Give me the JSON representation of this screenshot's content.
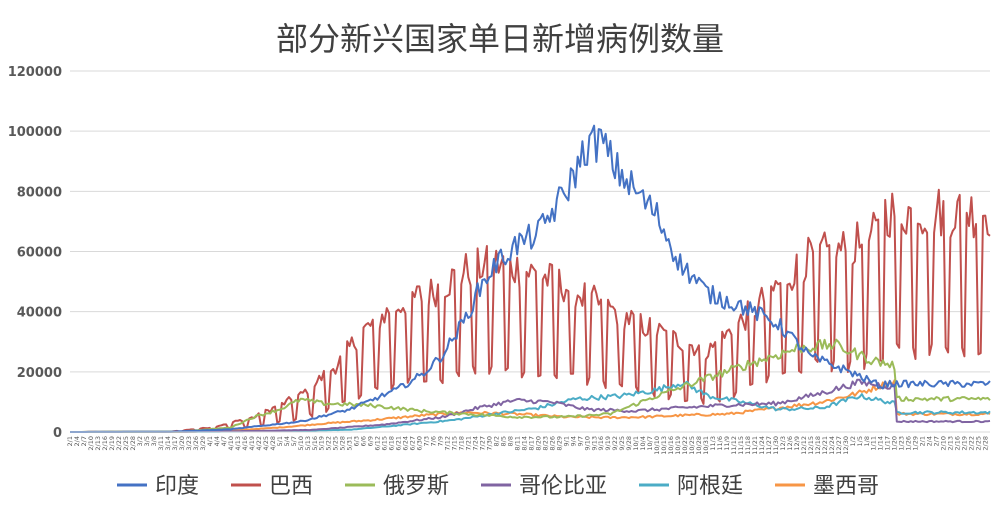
{
  "chart_data": {
    "type": "line",
    "title": "部分新兴国家单日新增病例数量",
    "xlabel": "",
    "ylabel": "",
    "ylim": [
      0,
      120000
    ],
    "yticks": [
      0,
      20000,
      40000,
      60000,
      80000,
      100000,
      120000
    ],
    "grid": true,
    "legend_position": "bottom",
    "x_start": "2020-02-01",
    "x_end": "2021-03-02",
    "x_tick_step_days": 3,
    "series": [
      {
        "name": "印度",
        "color": "#4472C4",
        "anchors": [
          [
            "2/1",
            0
          ],
          [
            "3/15",
            100
          ],
          [
            "4/10",
            900
          ],
          [
            "5/10",
            3500
          ],
          [
            "5/31",
            7500
          ],
          [
            "6/20",
            14000
          ],
          [
            "7/1",
            19000
          ],
          [
            "7/8",
            24000
          ],
          [
            "7/12",
            28000
          ],
          [
            "7/20",
            38000
          ],
          [
            "7/26",
            48000
          ],
          [
            "8/1",
            55000
          ],
          [
            "8/10",
            62000
          ],
          [
            "8/20",
            66000
          ],
          [
            "9/1",
            80000
          ],
          [
            "9/10",
            95000
          ],
          [
            "9/16",
            97000
          ],
          [
            "9/22",
            88000
          ],
          [
            "10/1",
            80000
          ],
          [
            "10/10",
            72000
          ],
          [
            "10/20",
            56000
          ],
          [
            "11/1",
            46000
          ],
          [
            "11/15",
            42000
          ],
          [
            "12/1",
            36000
          ],
          [
            "12/15",
            25000
          ],
          [
            "1/1",
            20000
          ],
          [
            "1/15",
            15000
          ],
          [
            "2/1",
            12000
          ],
          [
            "2/15",
            11000
          ],
          [
            "2/24",
            17000
          ],
          [
            "3/2",
            16000
          ]
        ]
      },
      {
        "name": "巴西",
        "color": "#C0504D",
        "anchors": [
          [
            "2/1",
            0
          ],
          [
            "3/15",
            100
          ],
          [
            "4/1",
            1200
          ],
          [
            "4/20",
            4000
          ],
          [
            "5/10",
            10000
          ],
          [
            "5/25",
            18000
          ],
          [
            "6/5",
            27000
          ],
          [
            "6/15",
            32000
          ],
          [
            "6/25",
            36000
          ],
          [
            "7/5",
            38000
          ],
          [
            "7/20",
            44000
          ],
          [
            "8/1",
            46000
          ],
          [
            "8/15",
            44000
          ],
          [
            "8/31",
            40000
          ],
          [
            "9/15",
            35000
          ],
          [
            "10/1",
            30000
          ],
          [
            "10/15",
            26000
          ],
          [
            "11/1",
            22000
          ],
          [
            "11/15",
            30000
          ],
          [
            "12/1",
            40000
          ],
          [
            "12/15",
            48000
          ],
          [
            "1/1",
            50000
          ],
          [
            "1/15",
            55000
          ],
          [
            "2/1",
            50000
          ],
          [
            "2/15",
            48000
          ],
          [
            "3/2",
            60000
          ]
        ],
        "amp": 0.55
      },
      {
        "name": "俄罗斯",
        "color": "#9BBB59",
        "anchors": [
          [
            "2/1",
            0
          ],
          [
            "3/20",
            150
          ],
          [
            "4/10",
            1500
          ],
          [
            "4/20",
            5000
          ],
          [
            "5/1",
            7500
          ],
          [
            "5/10",
            10800
          ],
          [
            "5/20",
            9500
          ],
          [
            "6/10",
            8800
          ],
          [
            "7/1",
            7000
          ],
          [
            "7/20",
            6000
          ],
          [
            "8/10",
            5000
          ],
          [
            "9/1",
            5000
          ],
          [
            "9/20",
            6000
          ],
          [
            "10/10",
            12000
          ],
          [
            "11/1",
            18000
          ],
          [
            "11/20",
            23000
          ],
          [
            "12/10",
            28000
          ],
          [
            "12/25",
            29000
          ],
          [
            "1/10",
            24000
          ],
          [
            "1/20",
            22000
          ],
          [
            "2/1",
            17000
          ],
          [
            "2/15",
            14000
          ],
          [
            "3/2",
            11000
          ]
        ]
      },
      {
        "name": "哥伦比亚",
        "color": "#8064A2",
        "anchors": [
          [
            "2/1",
            0
          ],
          [
            "3/20",
            100
          ],
          [
            "4/15",
            300
          ],
          [
            "5/15",
            700
          ],
          [
            "6/15",
            2500
          ],
          [
            "7/10",
            5000
          ],
          [
            "7/25",
            8000
          ],
          [
            "8/10",
            10500
          ],
          [
            "8/25",
            10000
          ],
          [
            "9/10",
            7500
          ],
          [
            "10/1",
            7000
          ],
          [
            "10/20",
            8000
          ],
          [
            "11/10",
            9000
          ],
          [
            "12/1",
            9500
          ],
          [
            "12/20",
            13000
          ],
          [
            "1/5",
            16500
          ],
          [
            "1/20",
            15000
          ],
          [
            "2/5",
            7000
          ],
          [
            "3/2",
            3500
          ]
        ]
      },
      {
        "name": "阿根廷",
        "color": "#4BACC6",
        "anchors": [
          [
            "2/1",
            0
          ],
          [
            "4/1",
            100
          ],
          [
            "5/1",
            200
          ],
          [
            "6/1",
            800
          ],
          [
            "6/25",
            2500
          ],
          [
            "7/15",
            4000
          ],
          [
            "8/1",
            6000
          ],
          [
            "8/20",
            8000
          ],
          [
            "9/5",
            11000
          ],
          [
            "9/25",
            12000
          ],
          [
            "10/10",
            14000
          ],
          [
            "10/21",
            16500
          ],
          [
            "11/1",
            12000
          ],
          [
            "11/15",
            10000
          ],
          [
            "12/1",
            7500
          ],
          [
            "12/20",
            8000
          ],
          [
            "1/5",
            12000
          ],
          [
            "1/20",
            9500
          ],
          [
            "2/10",
            7500
          ],
          [
            "3/2",
            6500
          ]
        ]
      },
      {
        "name": "墨西哥",
        "color": "#F79646",
        "anchors": [
          [
            "2/1",
            0
          ],
          [
            "3/25",
            100
          ],
          [
            "4/15",
            700
          ],
          [
            "5/1",
            1500
          ],
          [
            "5/20",
            2800
          ],
          [
            "6/10",
            4000
          ],
          [
            "7/1",
            5500
          ],
          [
            "7/20",
            6500
          ],
          [
            "8/10",
            6000
          ],
          [
            "9/1",
            5000
          ],
          [
            "9/20",
            4800
          ],
          [
            "10/5",
            5000
          ],
          [
            "10/20",
            5500
          ],
          [
            "11/10",
            6000
          ],
          [
            "12/1",
            8000
          ],
          [
            "12/20",
            10000
          ],
          [
            "1/5",
            13000
          ],
          [
            "1/20",
            17000
          ],
          [
            "2/5",
            11000
          ],
          [
            "2/20",
            7000
          ],
          [
            "3/2",
            6000
          ]
        ]
      }
    ]
  }
}
